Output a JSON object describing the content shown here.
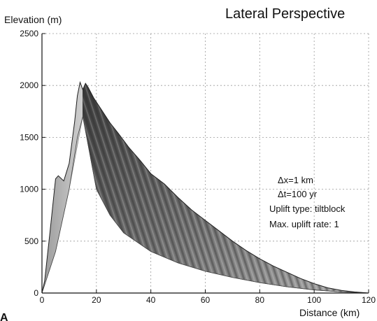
{
  "chart_data": {
    "type": "area",
    "title": "Lateral Perspective",
    "xlabel": "Distance (km)",
    "ylabel": "Elevation (m)",
    "panel_label": "A",
    "xlim": [
      0,
      120
    ],
    "ylim": [
      0,
      2500
    ],
    "xticks": [
      0,
      20,
      40,
      60,
      80,
      100,
      120
    ],
    "yticks": [
      0,
      500,
      1000,
      1500,
      2000,
      2500
    ],
    "grid": true,
    "annotations": [
      "Δx=1 km",
      "Δt=100 yr",
      "Uplift type: tiltblock",
      "Max. uplift rate: 1"
    ],
    "series": [
      {
        "values": [
          {
            "x": 0,
            "y": 0
          },
          {
            "x": 1,
            "y": 120
          },
          {
            "x": 3,
            "y": 600
          },
          {
            "x": 5,
            "y": 1100
          },
          {
            "x": 6,
            "y": 1130
          },
          {
            "x": 8,
            "y": 1080
          },
          {
            "x": 10,
            "y": 1250
          },
          {
            "x": 12,
            "y": 1650
          },
          {
            "x": 13,
            "y": 1900
          },
          {
            "x": 14,
            "y": 2030
          },
          {
            "x": 15,
            "y": 1960
          },
          {
            "x": 16,
            "y": 2020
          },
          {
            "x": 17,
            "y": 1980
          },
          {
            "x": 19,
            "y": 1880
          },
          {
            "x": 22,
            "y": 1760
          },
          {
            "x": 25,
            "y": 1640
          },
          {
            "x": 28,
            "y": 1540
          },
          {
            "x": 32,
            "y": 1400
          },
          {
            "x": 36,
            "y": 1280
          },
          {
            "x": 40,
            "y": 1150
          },
          {
            "x": 45,
            "y": 1050
          },
          {
            "x": 50,
            "y": 920
          },
          {
            "x": 55,
            "y": 800
          },
          {
            "x": 60,
            "y": 700
          },
          {
            "x": 65,
            "y": 600
          },
          {
            "x": 70,
            "y": 500
          },
          {
            "x": 75,
            "y": 410
          },
          {
            "x": 80,
            "y": 330
          },
          {
            "x": 85,
            "y": 260
          },
          {
            "x": 90,
            "y": 200
          },
          {
            "x": 95,
            "y": 140
          },
          {
            "x": 100,
            "y": 90
          },
          {
            "x": 105,
            "y": 50
          },
          {
            "x": 110,
            "y": 25
          },
          {
            "x": 115,
            "y": 10
          },
          {
            "x": 120,
            "y": 0
          }
        ]
      },
      {
        "values": [
          {
            "x": 0,
            "y": 0
          },
          {
            "x": 5,
            "y": 400
          },
          {
            "x": 10,
            "y": 1000
          },
          {
            "x": 13,
            "y": 1500
          },
          {
            "x": 15,
            "y": 1700
          },
          {
            "x": 20,
            "y": 1000
          },
          {
            "x": 25,
            "y": 750
          },
          {
            "x": 30,
            "y": 580
          },
          {
            "x": 40,
            "y": 400
          },
          {
            "x": 50,
            "y": 290
          },
          {
            "x": 60,
            "y": 210
          },
          {
            "x": 70,
            "y": 150
          },
          {
            "x": 80,
            "y": 100
          },
          {
            "x": 90,
            "y": 60
          },
          {
            "x": 100,
            "y": 30
          },
          {
            "x": 110,
            "y": 10
          },
          {
            "x": 120,
            "y": 0
          }
        ]
      }
    ]
  }
}
